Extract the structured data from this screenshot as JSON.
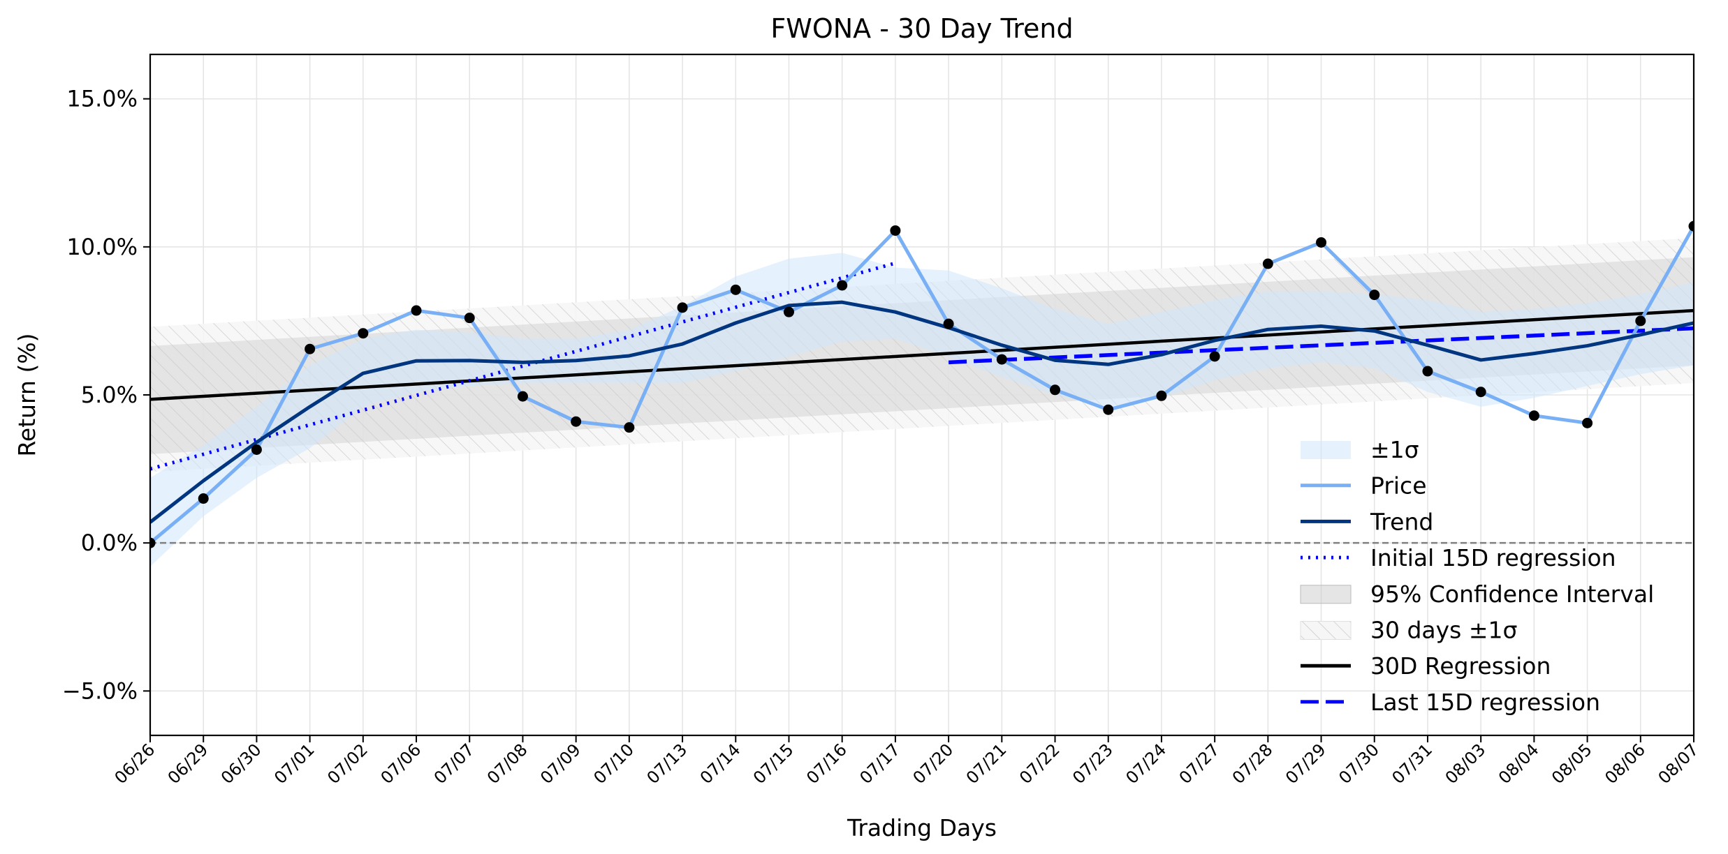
{
  "chart_data": {
    "type": "line",
    "title": "FWONA - 30 Day Trend",
    "xlabel": "Trading Days",
    "ylabel": "Return (%)",
    "categories": [
      "06/26",
      "06/29",
      "06/30",
      "07/01",
      "07/02",
      "07/06",
      "07/07",
      "07/08",
      "07/09",
      "07/10",
      "07/13",
      "07/14",
      "07/15",
      "07/16",
      "07/17",
      "07/20",
      "07/21",
      "07/22",
      "07/23",
      "07/24",
      "07/27",
      "07/28",
      "07/29",
      "07/30",
      "07/31",
      "08/03",
      "08/04",
      "08/05",
      "08/06",
      "08/07"
    ],
    "ylim": [
      -6.5,
      16.5
    ],
    "yticks": [
      -5,
      0,
      5,
      10,
      15
    ],
    "ytick_labels": [
      "−5.0%",
      "0.0%",
      "5.0%",
      "10.0%",
      "15.0%"
    ],
    "grid": true,
    "zero_line": 0,
    "legend_position": "lower-right",
    "series": [
      {
        "name": "Price",
        "kind": "line",
        "color": "#79b0f5",
        "markers": true,
        "values": [
          0.0,
          1.5,
          3.15,
          6.55,
          7.08,
          7.85,
          7.6,
          4.95,
          4.1,
          3.9,
          7.95,
          8.55,
          7.8,
          8.7,
          10.55,
          7.4,
          6.2,
          5.17,
          4.5,
          4.97,
          6.3,
          9.43,
          10.15,
          8.38,
          5.8,
          5.1,
          4.3,
          4.05,
          7.5,
          10.7
        ]
      },
      {
        "name": "Trend",
        "kind": "line",
        "color": "#003580",
        "values": [
          0.7,
          2.1,
          3.4,
          4.6,
          5.73,
          6.15,
          6.16,
          6.1,
          6.16,
          6.32,
          6.72,
          7.43,
          8.02,
          8.13,
          7.8,
          7.27,
          6.68,
          6.17,
          6.03,
          6.36,
          6.84,
          7.21,
          7.32,
          7.16,
          6.68,
          6.18,
          6.4,
          6.66,
          7.03,
          7.43
        ]
      },
      {
        "name": "±1σ",
        "kind": "band",
        "color": "#cfe5fb",
        "lower": [
          -0.8,
          0.9,
          2.2,
          3.2,
          4.6,
          5.1,
          5.3,
          5.4,
          5.4,
          5.4,
          5.4,
          5.8,
          6.3,
          6.8,
          6.9,
          6.3,
          5.6,
          5.0,
          4.6,
          4.9,
          5.5,
          5.9,
          6.1,
          5.9,
          5.1,
          4.6,
          4.9,
          5.3,
          5.7,
          6.0
        ],
        "upper": [
          2.2,
          3.3,
          4.6,
          6.0,
          6.9,
          7.2,
          7.1,
          6.9,
          6.9,
          7.2,
          8.0,
          9.0,
          9.6,
          9.8,
          9.3,
          9.2,
          8.6,
          7.9,
          7.4,
          7.8,
          8.2,
          8.5,
          8.5,
          8.4,
          8.2,
          7.8,
          7.9,
          8.1,
          8.4,
          8.8
        ]
      },
      {
        "name": "Initial 15D regression",
        "kind": "line",
        "style": "dotted",
        "color": "#0000ff",
        "x_range": [
          0,
          14
        ],
        "values_at_ends": [
          2.5,
          9.45
        ]
      },
      {
        "name": "95% Confidence Interval",
        "kind": "band",
        "color": "#cccccc",
        "lower_at_ends": [
          3.0,
          6.0
        ],
        "upper_at_ends": [
          6.65,
          9.65
        ]
      },
      {
        "name": "30 days ±1σ",
        "kind": "band",
        "style": "hatched",
        "color": "#e8e8e8",
        "lower_at_ends": [
          2.4,
          5.4
        ],
        "upper_at_ends": [
          7.3,
          10.3
        ]
      },
      {
        "name": "30D Regression",
        "kind": "line",
        "color": "#000000",
        "x_range": [
          0,
          29
        ],
        "values_at_ends": [
          4.85,
          7.85
        ]
      },
      {
        "name": "Last 15D regression",
        "kind": "line",
        "style": "dashed",
        "color": "#0000ff",
        "x_range": [
          15,
          29
        ],
        "values_at_ends": [
          6.1,
          7.25
        ]
      }
    ],
    "legend": [
      "±1σ",
      "Price",
      "Trend",
      "Initial 15D regression",
      "95% Confidence Interval",
      "30 days ±1σ",
      "30D Regression",
      "Last 15D regression"
    ]
  }
}
